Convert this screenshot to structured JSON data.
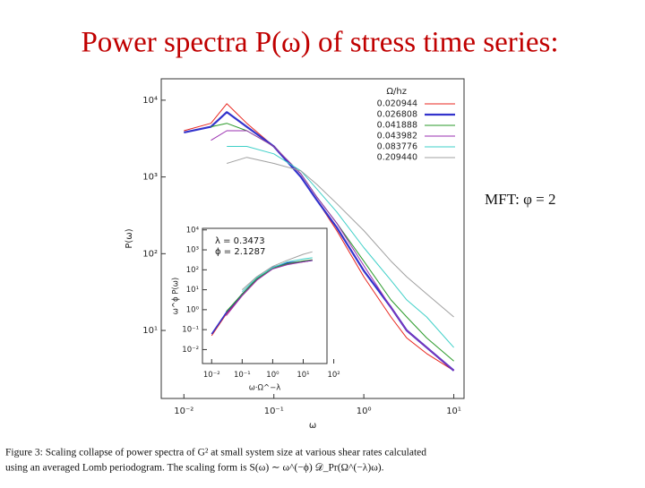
{
  "title": "Power spectra P(ω) of stress time series:",
  "annotation": "MFT: φ = 2",
  "caption": [
    "Figure 3: Scaling collapse of power spectra of G² at small system size at various shear rates calculated",
    "using an averaged Lomb periodogram. The scaling form is S(ω) ∼ ω^(−ϕ) 𝒟_Pr(Ω^(−λ)ω)."
  ],
  "chart_data": [
    {
      "type": "line",
      "xscale": "log",
      "yscale": "log",
      "x_label": "ω",
      "y_label": "P(ω)",
      "legend": "upper right",
      "legend_title": "Ω/hz",
      "xlim": [
        0.0056,
        13
      ],
      "ylim": [
        1.3,
        19000
      ],
      "xticks": [
        {
          "value": 0.01,
          "label": "10⁻²"
        },
        {
          "value": 0.1,
          "label": "10⁻¹"
        },
        {
          "value": 1,
          "label": "10⁰"
        },
        {
          "value": 10,
          "label": "10¹"
        }
      ],
      "yticks": [
        {
          "value": 10,
          "label": "10¹"
        },
        {
          "value": 100,
          "label": "10²"
        },
        {
          "value": 1000,
          "label": "10³"
        },
        {
          "value": 10000,
          "label": "10⁴"
        }
      ],
      "x": [
        0.01,
        0.02,
        0.03,
        0.05,
        0.1,
        0.2,
        0.3,
        0.5,
        1,
        2,
        3,
        5,
        10
      ],
      "series": [
        {
          "name": "0.020944",
          "color": "#e8261f",
          "width": 1,
          "values": [
            4000,
            5000,
            9000,
            5000,
            2500,
            1000,
            500,
            200,
            50,
            15,
            8,
            5,
            3
          ]
        },
        {
          "name": "0.026808",
          "color": "#3333cc",
          "width": 2.2,
          "values": [
            3800,
            4500,
            7000,
            4500,
            2500,
            1000,
            500,
            220,
            60,
            20,
            10,
            6,
            3
          ]
        },
        {
          "name": "0.041888",
          "color": "#2a9a2a",
          "width": 1,
          "values": [
            null,
            4500,
            5000,
            4000,
            2500,
            1100,
            550,
            250,
            80,
            25,
            15,
            8,
            4
          ]
        },
        {
          "name": "0.043982",
          "color": "#9a2fb0",
          "width": 1,
          "values": [
            null,
            3000,
            4000,
            4000,
            2500,
            1100,
            550,
            250,
            70,
            20,
            10,
            6,
            3
          ]
        },
        {
          "name": "0.083776",
          "color": "#3fd0c8",
          "width": 1,
          "values": [
            null,
            null,
            2500,
            2500,
            2000,
            1200,
            700,
            350,
            120,
            45,
            25,
            15,
            6
          ]
        },
        {
          "name": "0.209440",
          "color": "#a0a0a0",
          "width": 1,
          "values": [
            null,
            null,
            1500,
            1800,
            1500,
            1200,
            800,
            450,
            200,
            80,
            50,
            30,
            15
          ]
        }
      ]
    },
    {
      "type": "line",
      "xscale": "log",
      "yscale": "log",
      "x_label": "ω·Ω^−λ",
      "y_label": "ω^ϕ P(ω)",
      "annotations": [
        "λ = 0.3473",
        "ϕ = 2.1287"
      ],
      "xlim": [
        0.005,
        60
      ],
      "ylim": [
        0.002,
        12000
      ],
      "xticks": [
        {
          "value": 0.01,
          "label": "10⁻²"
        },
        {
          "value": 0.1,
          "label": "10⁻¹"
        },
        {
          "value": 1,
          "label": "10⁰"
        },
        {
          "value": 10,
          "label": "10¹"
        },
        {
          "value": 100,
          "label": "10²"
        }
      ],
      "yticks": [
        {
          "value": 0.01,
          "label": "10⁻²"
        },
        {
          "value": 0.1,
          "label": "10⁻¹"
        },
        {
          "value": 1,
          "label": "10⁰"
        },
        {
          "value": 10,
          "label": "10¹"
        },
        {
          "value": 100,
          "label": "10²"
        },
        {
          "value": 1000,
          "label": "10³"
        },
        {
          "value": 10000,
          "label": "10⁴"
        }
      ],
      "x": [
        0.01,
        0.03,
        0.1,
        0.3,
        1,
        3,
        10,
        20
      ],
      "series": [
        {
          "color": "#e8261f",
          "width": 1,
          "values": [
            0.05,
            0.6,
            5,
            30,
            120,
            200,
            250,
            300
          ]
        },
        {
          "color": "#3333cc",
          "width": 1.6,
          "values": [
            0.06,
            0.7,
            6,
            35,
            130,
            220,
            260,
            300
          ]
        },
        {
          "color": "#2a9a2a",
          "width": 1,
          "values": [
            null,
            0.8,
            6,
            35,
            120,
            200,
            280,
            320
          ]
        },
        {
          "color": "#9a2fb0",
          "width": 1,
          "values": [
            null,
            0.5,
            5,
            30,
            110,
            180,
            250,
            300
          ]
        },
        {
          "color": "#3fd0c8",
          "width": 1,
          "values": [
            null,
            null,
            8,
            40,
            130,
            250,
            350,
            400
          ]
        },
        {
          "color": "#a0a0a0",
          "width": 1,
          "values": [
            null,
            null,
            10,
            45,
            150,
            300,
            600,
            800
          ]
        }
      ]
    }
  ]
}
